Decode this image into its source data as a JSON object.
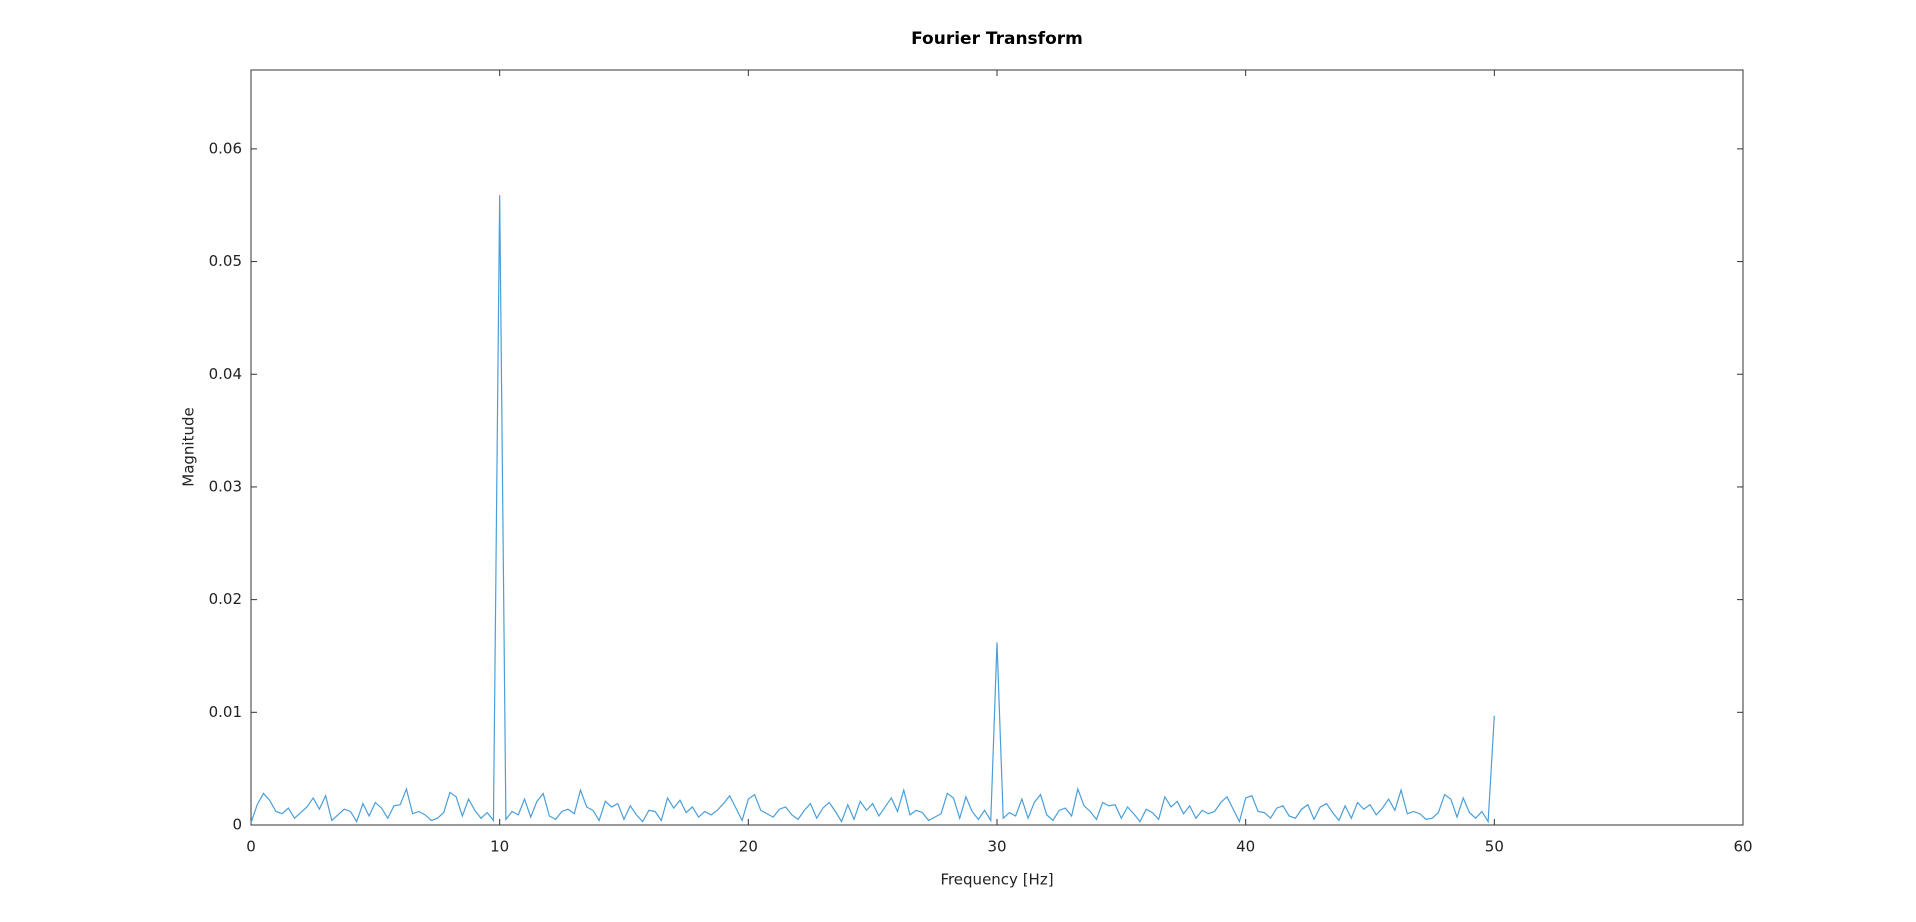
{
  "chart_data": {
    "type": "line",
    "title": "Fourier Transform",
    "x_label": "Frequency [Hz]",
    "y_label": "Magnitude",
    "xlim": [
      0,
      60
    ],
    "xticks": [
      0,
      10,
      20,
      30,
      40,
      50,
      60
    ],
    "ylim": [
      0,
      0.067
    ],
    "yticks": [
      0,
      0.01,
      0.02,
      0.03,
      0.04,
      0.05,
      0.06
    ],
    "grid": false,
    "x": [
      0,
      0.25,
      0.5,
      0.75,
      1,
      1.25,
      1.5,
      1.75,
      2,
      2.25,
      2.5,
      2.75,
      3,
      3.25,
      3.5,
      3.75,
      4,
      4.25,
      4.5,
      4.75,
      5,
      5.25,
      5.5,
      5.75,
      6,
      6.25,
      6.5,
      6.75,
      7,
      7.25,
      7.5,
      7.75,
      8,
      8.25,
      8.5,
      8.75,
      9,
      9.25,
      9.5,
      9.75,
      10,
      10.25,
      10.5,
      10.75,
      11,
      11.25,
      11.5,
      11.75,
      12,
      12.25,
      12.5,
      12.75,
      13,
      13.25,
      13.5,
      13.75,
      14,
      14.25,
      14.5,
      14.75,
      15,
      15.25,
      15.5,
      15.75,
      16,
      16.25,
      16.5,
      16.75,
      17,
      17.25,
      17.5,
      17.75,
      18,
      18.25,
      18.5,
      18.75,
      19,
      19.25,
      19.5,
      19.75,
      20,
      20.25,
      20.5,
      20.75,
      21,
      21.25,
      21.5,
      21.75,
      22,
      22.25,
      22.5,
      22.75,
      23,
      23.25,
      23.5,
      23.75,
      24,
      24.25,
      24.5,
      24.75,
      25,
      25.25,
      25.5,
      25.75,
      26,
      26.25,
      26.5,
      26.75,
      27,
      27.25,
      27.5,
      27.75,
      28,
      28.25,
      28.5,
      28.75,
      29,
      29.25,
      29.5,
      29.75,
      30,
      30.25,
      30.5,
      30.75,
      31,
      31.25,
      31.5,
      31.75,
      32,
      32.25,
      32.5,
      32.75,
      33,
      33.25,
      33.5,
      33.75,
      34,
      34.25,
      34.5,
      34.75,
      35,
      35.25,
      35.5,
      35.75,
      36,
      36.25,
      36.5,
      36.75,
      37,
      37.25,
      37.5,
      37.75,
      38,
      38.25,
      38.5,
      38.75,
      39,
      39.25,
      39.5,
      39.75,
      40,
      40.25,
      40.5,
      40.75,
      41,
      41.25,
      41.5,
      41.75,
      42,
      42.25,
      42.5,
      42.75,
      43,
      43.25,
      43.5,
      43.75,
      44,
      44.25,
      44.5,
      44.75,
      45,
      45.25,
      45.5,
      45.75,
      46,
      46.25,
      46.5,
      46.75,
      47,
      47.25,
      47.5,
      47.75,
      48,
      48.25,
      48.5,
      48.75,
      49,
      49.25,
      49.5,
      49.75,
      50
    ],
    "series": [
      {
        "color": "#4a9fd9",
        "values": [
          0.0002,
          0.0018,
          0.0028,
          0.0022,
          0.0012,
          0.001,
          0.0015,
          0.0006,
          0.0011,
          0.0016,
          0.0024,
          0.0014,
          0.0026,
          0.0004,
          0.0009,
          0.0014,
          0.0012,
          0.0003,
          0.0019,
          0.0008,
          0.002,
          0.0015,
          0.0006,
          0.0017,
          0.0018,
          0.0032,
          0.001,
          0.0012,
          0.0009,
          0.0004,
          0.0006,
          0.0011,
          0.0029,
          0.0025,
          0.0008,
          0.0023,
          0.0013,
          0.0006,
          0.0011,
          0.0004,
          0.0559,
          0.0005,
          0.0012,
          0.0009,
          0.0023,
          0.0007,
          0.0021,
          0.0028,
          0.0008,
          0.0005,
          0.0012,
          0.0014,
          0.001,
          0.0031,
          0.0016,
          0.0013,
          0.0004,
          0.0021,
          0.0016,
          0.0019,
          0.0005,
          0.0017,
          0.0009,
          0.0003,
          0.0013,
          0.0012,
          0.0004,
          0.0024,
          0.0015,
          0.0022,
          0.0011,
          0.0016,
          0.0007,
          0.0012,
          0.0009,
          0.0013,
          0.0019,
          0.0026,
          0.0015,
          0.0004,
          0.0023,
          0.0027,
          0.0013,
          0.001,
          0.0007,
          0.0014,
          0.0016,
          0.0009,
          0.0005,
          0.0013,
          0.0019,
          0.0006,
          0.0015,
          0.002,
          0.0012,
          0.0003,
          0.0018,
          0.0005,
          0.0021,
          0.0013,
          0.0019,
          0.0008,
          0.0016,
          0.0024,
          0.0012,
          0.0031,
          0.0009,
          0.0013,
          0.0011,
          0.0004,
          0.0007,
          0.001,
          0.0028,
          0.0024,
          0.0006,
          0.0025,
          0.0012,
          0.0005,
          0.0013,
          0.0004,
          0.0162,
          0.0006,
          0.0011,
          0.0008,
          0.0023,
          0.0006,
          0.002,
          0.0027,
          0.0009,
          0.0004,
          0.0013,
          0.0015,
          0.0008,
          0.0032,
          0.0017,
          0.0012,
          0.0005,
          0.002,
          0.0017,
          0.0018,
          0.0006,
          0.0016,
          0.001,
          0.0003,
          0.0014,
          0.0011,
          0.0005,
          0.0025,
          0.0016,
          0.0021,
          0.001,
          0.0017,
          0.0006,
          0.0013,
          0.001,
          0.0012,
          0.002,
          0.0025,
          0.0014,
          0.0003,
          0.0024,
          0.0026,
          0.0012,
          0.0011,
          0.0006,
          0.0015,
          0.0017,
          0.0008,
          0.0006,
          0.0014,
          0.0018,
          0.0005,
          0.0016,
          0.0019,
          0.0011,
          0.0004,
          0.0017,
          0.0006,
          0.002,
          0.0014,
          0.0018,
          0.0009,
          0.0015,
          0.0023,
          0.0013,
          0.0031,
          0.001,
          0.0012,
          0.001,
          0.0005,
          0.0006,
          0.0011,
          0.0027,
          0.0023,
          0.0007,
          0.0024,
          0.0011,
          0.0006,
          0.0012,
          0.0003,
          0.0097
        ]
      }
    ]
  }
}
